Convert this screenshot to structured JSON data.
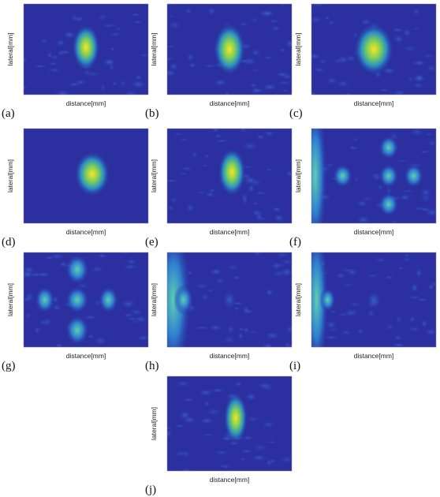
{
  "panels": [
    {
      "label": "(a)",
      "x_label": "distance[mm]",
      "y_label": "lateral[mm]"
    },
    {
      "label": "(b)",
      "x_label": "distance[mm]",
      "y_label": "lateral[mm]"
    },
    {
      "label": "(c)",
      "x_label": "distance[mm]",
      "y_label": "lateral[mm]"
    },
    {
      "label": "(d)",
      "x_label": "distance[mm]",
      "y_label": "lateral[mm]"
    },
    {
      "label": "(e)",
      "x_label": "distance[mm]",
      "y_label": "lateral[mm]"
    },
    {
      "label": "(f)",
      "x_label": "distance[mm]",
      "y_label": "lateral[mm]"
    },
    {
      "label": "(g)",
      "x_label": "distance[mm]",
      "y_label": "lateral[mm]"
    },
    {
      "label": "(h)",
      "x_label": "distance[mm]",
      "y_label": "lateral[mm]"
    },
    {
      "label": "(i)",
      "x_label": "distance[mm]",
      "y_label": "lateral[mm]"
    },
    {
      "label": "(j)",
      "x_label": "distance[mm]",
      "y_label": "lateral[mm]"
    }
  ]
}
